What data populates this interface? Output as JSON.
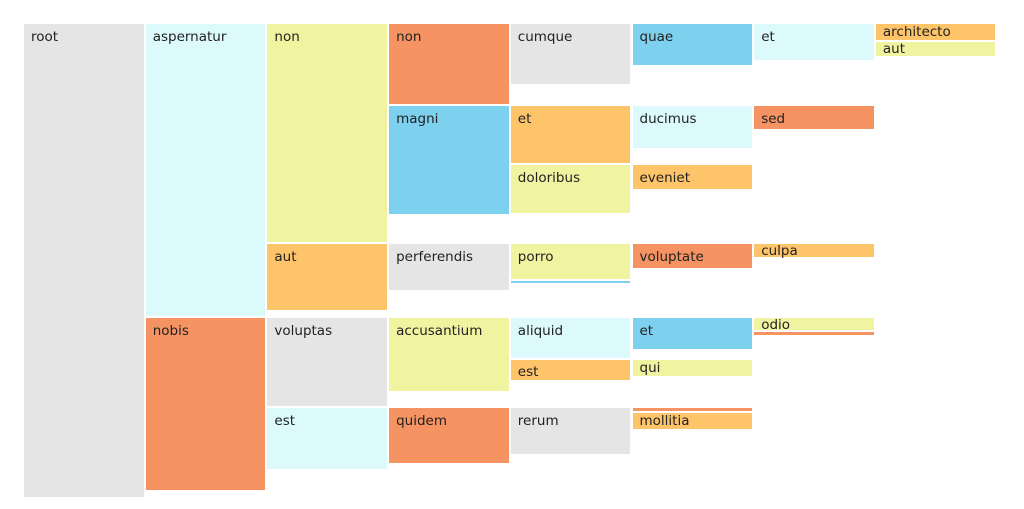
{
  "chart_data": {
    "type": "icicle",
    "title": "",
    "colors": {
      "gray": "#e5e5e5",
      "cyan": "#dcf9fc",
      "orange": "#f59462",
      "yellow": "#f0f4a0",
      "amber": "#fec46a",
      "blue": "#7dd0ee"
    },
    "root": {
      "name": "root",
      "color": "gray",
      "value": 473,
      "children": [
        {
          "name": "aspernatur",
          "color": "cyan",
          "value": 294,
          "children": [
            {
              "name": "non",
              "color": "yellow",
              "value": 220,
              "children": [
                {
                  "name": "non",
                  "color": "orange",
                  "value": 82,
                  "children": [
                    {
                      "name": "cumque",
                      "color": "gray",
                      "value": 62,
                      "children": [
                        {
                          "name": "quae",
                          "color": "blue",
                          "value": 43,
                          "children": [
                            {
                              "name": "et",
                              "color": "cyan",
                              "value": 38,
                              "children": [
                                {
                                  "name": "architecto",
                                  "color": "amber",
                                  "value": 18
                                },
                                {
                                  "name": "aut",
                                  "color": "yellow",
                                  "value": 16
                                }
                              ]
                            }
                          ]
                        }
                      ]
                    }
                  ]
                },
                {
                  "name": "magni",
                  "color": "blue",
                  "value": 110,
                  "children": [
                    {
                      "name": "et",
                      "color": "amber",
                      "value": 59,
                      "children": [
                        {
                          "name": "ducimus",
                          "color": "cyan",
                          "value": 44,
                          "children": [
                            {
                              "name": "sed",
                              "color": "orange",
                              "value": 25
                            }
                          ]
                        }
                      ]
                    },
                    {
                      "name": "doloribus",
                      "color": "yellow",
                      "value": 50,
                      "children": [
                        {
                          "name": "eveniet",
                          "color": "amber",
                          "value": 26
                        }
                      ]
                    }
                  ]
                }
              ]
            },
            {
              "name": "aut",
              "color": "amber",
              "value": 68,
              "children": [
                {
                  "name": "perferendis",
                  "color": "gray",
                  "value": 48,
                  "children": [
                    {
                      "name": "porro",
                      "color": "yellow",
                      "value": 37,
                      "children": [
                        {
                          "name": "voluptate",
                          "color": "orange",
                          "value": 26,
                          "children": [
                            {
                              "name": "culpa",
                              "color": "amber",
                              "value": 15
                            }
                          ]
                        }
                      ]
                    },
                    {
                      "name": "",
                      "color": "blue",
                      "value": 4
                    }
                  ]
                }
              ]
            }
          ]
        },
        {
          "name": "nobis",
          "color": "orange",
          "value": 174,
          "children": [
            {
              "name": "voluptas",
              "color": "gray",
              "value": 90,
              "children": [
                {
                  "name": "accusantium",
                  "color": "yellow",
                  "value": 75,
                  "children": [
                    {
                      "name": "aliquid",
                      "color": "cyan",
                      "value": 42,
                      "children": [
                        {
                          "name": "et",
                          "color": "blue",
                          "value": 33,
                          "children": [
                            {
                              "name": "odio",
                              "color": "yellow",
                              "value": 14
                            },
                            {
                              "name": "",
                              "color": "orange",
                              "value": 5
                            }
                          ]
                        }
                      ]
                    },
                    {
                      "name": "est",
                      "color": "amber",
                      "value": 22,
                      "children": [
                        {
                          "name": "qui",
                          "color": "yellow",
                          "value": 18
                        }
                      ]
                    }
                  ]
                }
              ]
            },
            {
              "name": "est",
              "color": "cyan",
              "value": 63,
              "children": [
                {
                  "name": "quidem",
                  "color": "orange",
                  "value": 57,
                  "children": [
                    {
                      "name": "rerum",
                      "color": "gray",
                      "value": 48,
                      "children": [
                        {
                          "name": "",
                          "color": "orange",
                          "value": 5
                        },
                        {
                          "name": "mollitia",
                          "color": "amber",
                          "value": 18
                        }
                      ]
                    }
                  ]
                }
              ]
            }
          ]
        }
      ]
    }
  }
}
